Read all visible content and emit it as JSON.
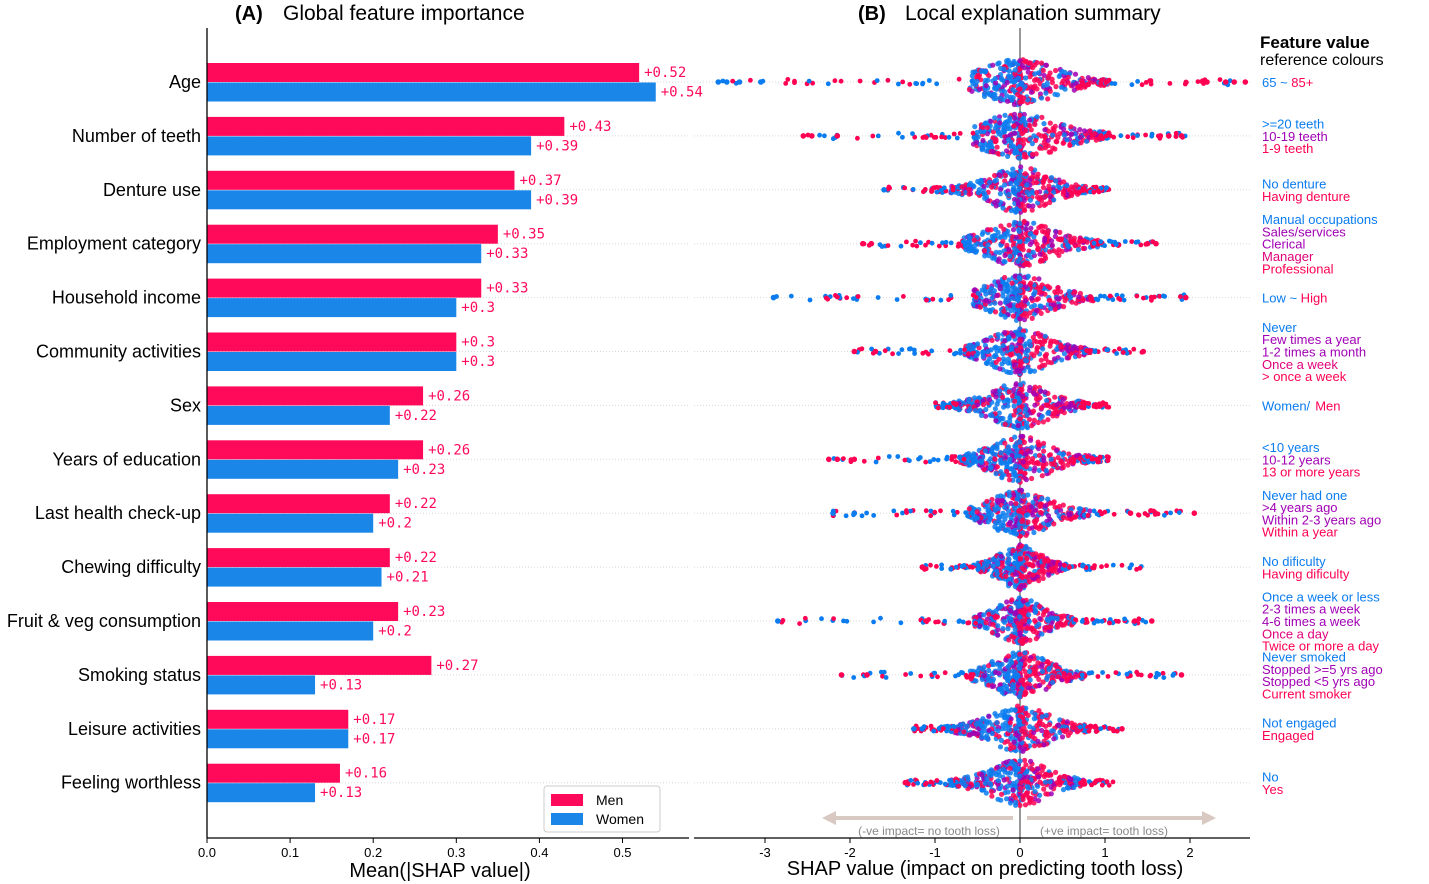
{
  "colors": {
    "men": "#ff0a5a",
    "women": "#1a86e8",
    "purple": "#a000b4",
    "high": "#ff0052",
    "low": "#0a7cf0",
    "axis": "#000000",
    "grid": "#d8d8d8",
    "arrow": "#d9c9c3",
    "arrow_text": "#888888"
  },
  "panel_a": {
    "title_tag": "(A)",
    "title_text": "Global feature importance",
    "xlabel": "Mean(|SHAP value|)",
    "xlim": [
      0.0,
      0.58
    ],
    "xticks": [
      0.0,
      0.1,
      0.2,
      0.3,
      0.4,
      0.5
    ],
    "xtick_labels": [
      "0.0",
      "0.1",
      "0.2",
      "0.3",
      "0.4",
      "0.5"
    ],
    "legend": {
      "placement": "lower-right",
      "men": "Men",
      "women": "Women"
    }
  },
  "panel_b": {
    "title_tag": "(B)",
    "title_text": "Local explanation summary",
    "xlabel": "SHAP value (impact on predicting tooth loss)",
    "xticks": [
      -3,
      -2,
      -1,
      0,
      1,
      2
    ],
    "xtick_labels": [
      "-3",
      "-2",
      "-1",
      "0",
      "1",
      "2"
    ],
    "neg_note": "(-ve impact= no tooth loss)",
    "pos_note": "(+ve impact= tooth loss)",
    "ref_title_1": "Feature value",
    "ref_title_2": "reference colours"
  },
  "chart_data": [
    {
      "type": "bar",
      "title": "Global feature importance",
      "xlabel": "Mean(|SHAP value|)",
      "orientation": "horizontal",
      "categories": [
        "Age",
        "Number of teeth",
        "Denture use",
        "Employment category",
        "Household income",
        "Community activities",
        "Sex",
        "Years of education",
        "Last health check-up",
        "Chewing difficulty",
        "Fruit & veg consumption",
        "Smoking status",
        "Leisure activities",
        "Feeling worthless"
      ],
      "series": [
        {
          "name": "Men",
          "values": [
            0.52,
            0.43,
            0.37,
            0.35,
            0.33,
            0.3,
            0.26,
            0.26,
            0.22,
            0.22,
            0.23,
            0.27,
            0.17,
            0.16
          ],
          "labels": [
            "+0.52",
            "+0.43",
            "+0.37",
            "+0.35",
            "+0.33",
            "+0.3",
            "+0.26",
            "+0.26",
            "+0.22",
            "+0.22",
            "+0.23",
            "+0.27",
            "+0.17",
            "+0.16"
          ]
        },
        {
          "name": "Women",
          "values": [
            0.54,
            0.39,
            0.39,
            0.33,
            0.3,
            0.3,
            0.22,
            0.23,
            0.2,
            0.21,
            0.2,
            0.13,
            0.17,
            0.13
          ],
          "labels": [
            "+0.54",
            "+0.39",
            "+0.39",
            "+0.33",
            "+0.3",
            "+0.3",
            "+0.22",
            "+0.23",
            "+0.2",
            "+0.21",
            "+0.2",
            "+0.13",
            "+0.17",
            "+0.13"
          ]
        }
      ],
      "xlim": [
        0.0,
        0.58
      ],
      "grid": false,
      "legend": "lower-right"
    },
    {
      "type": "scatter",
      "title": "Local explanation summary",
      "xlabel": "SHAP value (impact on predicting tooth loss)",
      "xlim": [
        -3.6,
        2.8
      ],
      "grid": false,
      "features": [
        {
          "name": "Age",
          "min": -3.55,
          "max": 2.65,
          "left_width": 0.55,
          "right_width": 0.95,
          "left_outliers": [
            -3.55,
            -3.45,
            -3.3,
            -3.05
          ],
          "right_outliers": [
            2.2,
            2.42,
            2.52,
            2.65
          ],
          "ref": [
            {
              "text": "65 ~ 85+",
              "gradient": true
            }
          ]
        },
        {
          "name": "Number of teeth",
          "min": -2.55,
          "max": 1.95,
          "left_width": 0.5,
          "right_width": 0.95,
          "left_outliers": [
            -2.55,
            -2.45,
            -2.15
          ],
          "right_outliers": [
            1.65,
            1.75,
            1.9
          ],
          "ref": [
            {
              "text": ">=20 teeth",
              "color": "low"
            },
            {
              "text": "10-19 teeth",
              "color": "purple"
            },
            {
              "text": "1-9 teeth",
              "color": "high"
            }
          ]
        },
        {
          "name": "Denture use",
          "min": -1.6,
          "max": 1.05,
          "left_width": 0.75,
          "right_width": 0.7,
          "left_outliers": [
            -1.6
          ],
          "right_outliers": [],
          "ref": [
            {
              "text": "No denture",
              "color": "low"
            },
            {
              "text": "Having denture",
              "color": "high"
            }
          ]
        },
        {
          "name": "Employment category",
          "min": -1.85,
          "max": 1.6,
          "left_width": 0.6,
          "right_width": 0.85,
          "left_outliers": [
            -1.85,
            -1.75
          ],
          "right_outliers": [
            1.5,
            1.6
          ],
          "ref": [
            {
              "text": "Manual occupations",
              "color": "low"
            },
            {
              "text": "Sales/services",
              "color": "purple"
            },
            {
              "text": "Clerical",
              "color": "purple"
            },
            {
              "text": "Manager",
              "color": "#e0007a"
            },
            {
              "text": "Professional",
              "color": "high"
            }
          ]
        },
        {
          "name": "Household income",
          "min": -2.9,
          "max": 1.95,
          "left_width": 0.5,
          "right_width": 0.8,
          "left_outliers": [
            -2.9
          ],
          "right_outliers": [
            1.95
          ],
          "ref": [
            {
              "text": "Low ~ High",
              "gradient": true
            }
          ]
        },
        {
          "name": "Community activities",
          "min": -1.95,
          "max": 1.45,
          "left_width": 0.6,
          "right_width": 0.75,
          "left_outliers": [
            -1.95,
            -1.7
          ],
          "right_outliers": [
            1.45
          ],
          "ref": [
            {
              "text": "Never",
              "color": "low"
            },
            {
              "text": "Few times a year",
              "color": "purple"
            },
            {
              "text": "1-2 times a month",
              "color": "purple"
            },
            {
              "text": "Once a week",
              "color": "#e0007a"
            },
            {
              "text": "> once a week",
              "color": "high"
            }
          ]
        },
        {
          "name": "Sex",
          "min": -1.0,
          "max": 1.05,
          "left_width": 0.75,
          "right_width": 0.7,
          "left_outliers": [],
          "right_outliers": [],
          "ref": [
            {
              "text": "Women/ ",
              "color": "low"
            },
            {
              "text": "Men",
              "color": "high",
              "inline": true
            }
          ]
        },
        {
          "name": "Years of education",
          "min": -2.25,
          "max": 1.05,
          "left_width": 0.65,
          "right_width": 0.75,
          "left_outliers": [
            -2.25,
            -2.15,
            -1.95
          ],
          "right_outliers": [],
          "ref": [
            {
              "text": "<10 years",
              "color": "low"
            },
            {
              "text": "10-12 years",
              "color": "purple"
            },
            {
              "text": "13 or more years",
              "color": "high"
            }
          ]
        },
        {
          "name": "Last health check-up",
          "min": -2.2,
          "max": 2.05,
          "left_width": 0.55,
          "right_width": 0.75,
          "left_outliers": [
            -2.2,
            -1.95
          ],
          "right_outliers": [
            1.3,
            2.05
          ],
          "ref": [
            {
              "text": "Never had one",
              "color": "low"
            },
            {
              "text": "&gt;4 years ago",
              "color": "purple"
            },
            {
              "text": "Within 2-3 years ago",
              "color": "purple"
            },
            {
              "text": "Within a year",
              "color": "high"
            }
          ]
        },
        {
          "name": "Chewing difficulty",
          "min": -1.15,
          "max": 1.5,
          "left_width": 0.45,
          "right_width": 0.5,
          "left_outliers": [
            -1.15
          ],
          "right_outliers": [],
          "ref": [
            {
              "text": "No dificulty",
              "color": "low"
            },
            {
              "text": "Having dificulty",
              "color": "high"
            }
          ]
        },
        {
          "name": "Fruit & veg consumption",
          "min": -2.85,
          "max": 1.55,
          "left_width": 0.5,
          "right_width": 0.6,
          "left_outliers": [
            -2.85
          ],
          "right_outliers": [
            1.35,
            1.55
          ],
          "ref": [
            {
              "text": "Once a week or less",
              "color": "low"
            },
            {
              "text": "2-3 times a week",
              "color": "purple"
            },
            {
              "text": "4-6 times a week",
              "color": "purple"
            },
            {
              "text": "Once a day",
              "color": "#e0007a"
            },
            {
              "text": "Twice or more a day",
              "color": "high"
            }
          ]
        },
        {
          "name": "Smoking status",
          "min": -2.1,
          "max": 1.9,
          "left_width": 0.55,
          "right_width": 0.7,
          "left_outliers": [
            -2.1,
            -1.8
          ],
          "right_outliers": [
            1.9
          ],
          "ref": [
            {
              "text": "Never smoked",
              "color": "low"
            },
            {
              "text": "Stopped >=5 yrs ago",
              "color": "purple"
            },
            {
              "text": "Stopped <5 yrs ago",
              "color": "purple"
            },
            {
              "text": "Current smoker",
              "color": "high"
            }
          ]
        },
        {
          "name": "Leisure activities",
          "min": -1.25,
          "max": 1.2,
          "left_width": 0.75,
          "right_width": 0.7,
          "left_outliers": [
            -1.25,
            -1.15
          ],
          "right_outliers": [
            1.2
          ],
          "ref": [
            {
              "text": "Not engaged",
              "color": "low"
            },
            {
              "text": "Engaged",
              "color": "high"
            }
          ]
        },
        {
          "name": "Feeling worthless",
          "min": -1.35,
          "max": 1.1,
          "left_width": 0.75,
          "right_width": 0.7,
          "left_outliers": [
            -1.35
          ],
          "right_outliers": [],
          "ref": [
            {
              "text": "No",
              "color": "low"
            },
            {
              "text": "Yes",
              "color": "high"
            }
          ]
        }
      ]
    }
  ]
}
